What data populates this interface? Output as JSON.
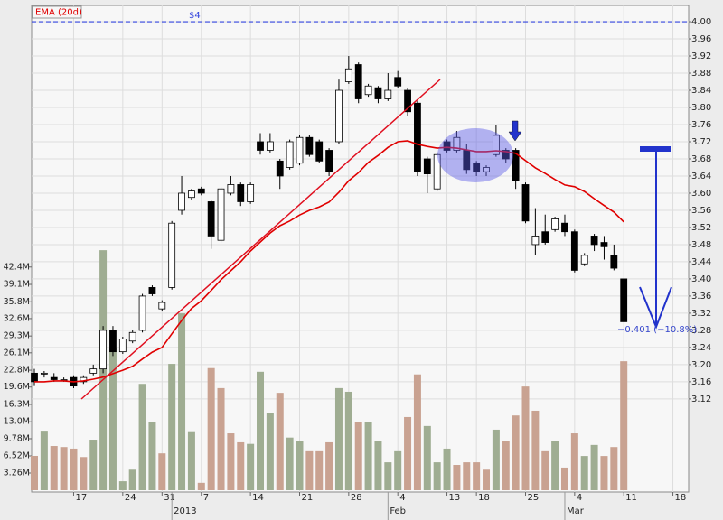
{
  "chart_data": {
    "type": "candlestick",
    "legend": "EMA (20d)",
    "annotation": "−0.401 (−10.8%)",
    "hline": {
      "value": 4,
      "label": "$4",
      "color": "#3344dd"
    },
    "categories": [
      null,
      null,
      null,
      null,
      "17",
      null,
      null,
      null,
      null,
      "24",
      null,
      null,
      null,
      "31",
      null,
      null,
      null,
      "7",
      null,
      null,
      null,
      null,
      "14",
      null,
      null,
      null,
      null,
      "21",
      null,
      null,
      null,
      null,
      "28",
      null,
      null,
      null,
      null,
      "4",
      null,
      null,
      null,
      null,
      "13",
      null,
      null,
      "18",
      null,
      null,
      null,
      null,
      "25",
      null,
      null,
      null,
      null,
      "4",
      null,
      null,
      null,
      null,
      "11",
      null,
      null,
      null,
      null,
      "18"
    ],
    "periods": [
      null,
      null,
      null,
      null,
      null,
      null,
      null,
      null,
      null,
      null,
      null,
      null,
      null,
      null,
      "2013",
      null,
      null,
      null,
      null,
      null,
      null,
      null,
      null,
      null,
      null,
      null,
      null,
      null,
      null,
      null,
      null,
      null,
      null,
      null,
      null,
      null,
      "Feb",
      null,
      null,
      null,
      null,
      null,
      null,
      null,
      null,
      null,
      null,
      null,
      null,
      null,
      null,
      null,
      null,
      null,
      "Mar",
      null,
      null,
      null,
      null,
      null,
      null,
      null,
      null,
      null,
      null,
      null
    ],
    "open": [
      3.18,
      3.18,
      3.17,
      3.165,
      3.17,
      3.16,
      3.18,
      3.19,
      3.28,
      3.23,
      3.255,
      3.28,
      3.38,
      3.33,
      3.38,
      3.56,
      3.59,
      3.61,
      3.58,
      3.49,
      3.6,
      3.62,
      3.58,
      3.72,
      3.7,
      3.675,
      3.66,
      3.67,
      3.73,
      3.72,
      3.7,
      3.72,
      3.86,
      3.9,
      3.83,
      3.846,
      3.82,
      3.87,
      3.84,
      3.81,
      3.68,
      3.61,
      3.72,
      3.7,
      3.7,
      3.67,
      3.65,
      3.69,
      3.7,
      3.7,
      3.62,
      3.48,
      3.51,
      3.515,
      3.53,
      3.51,
      3.435,
      3.5,
      3.485,
      3.455,
      3.4,
      null,
      null,
      null,
      null,
      null
    ],
    "close": [
      3.16,
      3.18,
      3.165,
      3.165,
      3.15,
      3.17,
      3.19,
      3.28,
      3.23,
      3.26,
      3.275,
      3.36,
      3.365,
      3.345,
      3.53,
      3.6,
      3.605,
      3.6,
      3.5,
      3.61,
      3.62,
      3.58,
      3.62,
      3.7,
      3.72,
      3.64,
      3.72,
      3.73,
      3.69,
      3.675,
      3.65,
      3.84,
      3.89,
      3.82,
      3.85,
      3.82,
      3.84,
      3.85,
      3.79,
      3.65,
      3.645,
      3.69,
      3.7,
      3.73,
      3.655,
      3.65,
      3.66,
      3.735,
      3.68,
      3.63,
      3.535,
      3.5,
      3.485,
      3.54,
      3.51,
      3.42,
      3.455,
      3.48,
      3.475,
      3.425,
      3.3,
      null,
      null,
      null,
      null,
      null
    ],
    "high": [
      3.19,
      3.185,
      3.18,
      3.17,
      3.175,
      3.175,
      3.2,
      3.29,
      3.29,
      3.265,
      3.28,
      3.365,
      3.385,
      3.35,
      3.535,
      3.64,
      3.61,
      3.615,
      3.585,
      3.615,
      3.64,
      3.625,
      3.625,
      3.74,
      3.74,
      3.68,
      3.725,
      3.735,
      3.735,
      3.725,
      3.705,
      3.865,
      3.92,
      3.905,
      3.855,
      3.85,
      3.88,
      3.885,
      3.845,
      3.815,
      3.685,
      3.695,
      3.725,
      3.745,
      3.715,
      3.675,
      3.665,
      3.76,
      3.705,
      3.705,
      3.625,
      3.565,
      3.55,
      3.545,
      3.55,
      3.515,
      3.46,
      3.505,
      3.5,
      3.48,
      3.4,
      null,
      null,
      null,
      null,
      null
    ],
    "low": [
      3.15,
      3.17,
      3.16,
      3.16,
      3.145,
      3.155,
      3.175,
      3.18,
      3.22,
      3.225,
      3.25,
      3.275,
      3.36,
      3.325,
      3.375,
      3.55,
      3.585,
      3.595,
      3.47,
      3.485,
      3.595,
      3.57,
      3.575,
      3.69,
      3.695,
      3.61,
      3.655,
      3.665,
      3.685,
      3.67,
      3.64,
      3.715,
      3.855,
      3.81,
      3.825,
      3.81,
      3.815,
      3.845,
      3.78,
      3.64,
      3.6,
      3.605,
      3.695,
      3.695,
      3.645,
      3.64,
      3.64,
      3.685,
      3.67,
      3.61,
      3.53,
      3.455,
      3.48,
      3.51,
      3.5,
      3.415,
      3.43,
      3.465,
      3.445,
      3.42,
      3.3,
      null,
      null,
      null,
      null,
      null
    ],
    "ema": {
      "name": "EMA (20d)",
      "color": "#e00000",
      "values": [
        3.16,
        3.16,
        3.162,
        3.162,
        3.16,
        3.162,
        3.166,
        3.171,
        3.179,
        3.187,
        3.196,
        3.213,
        3.229,
        3.24,
        3.272,
        3.303,
        3.331,
        3.349,
        3.373,
        3.398,
        3.419,
        3.44,
        3.465,
        3.486,
        3.507,
        3.524,
        3.535,
        3.549,
        3.56,
        3.568,
        3.579,
        3.602,
        3.629,
        3.648,
        3.672,
        3.688,
        3.707,
        3.72,
        3.722,
        3.714,
        3.709,
        3.705,
        3.707,
        3.705,
        3.701,
        3.697,
        3.697,
        3.699,
        3.697,
        3.693,
        3.676,
        3.659,
        3.646,
        3.632,
        3.619,
        3.615,
        3.604,
        3.587,
        3.571,
        3.556,
        3.533,
        null,
        null,
        null,
        null,
        null
      ]
    },
    "volume": {
      "axis": "y2",
      "values": [
        6520000,
        11300000,
        8400000,
        8200000,
        7900000,
        6300000,
        9600000,
        45600000,
        27100000,
        1700000,
        3900000,
        20200000,
        12900000,
        7000000,
        24000000,
        33600000,
        11200000,
        1400000,
        23200000,
        19400000,
        10800000,
        9100000,
        8800000,
        22500000,
        14600000,
        18500000,
        10000000,
        9400000,
        7400000,
        7400000,
        9100000,
        19400000,
        18700000,
        12900000,
        12900000,
        9400000,
        5300000,
        7400000,
        13900000,
        22000000,
        12200000,
        5300000,
        7900000,
        4800000,
        5300000,
        5300000,
        3900000,
        11500000,
        9400000,
        14200000,
        19700000,
        15100000,
        7400000,
        9400000,
        4300000,
        10800000,
        6500000,
        8600000,
        6500000,
        8200000,
        24500000,
        null,
        null,
        null,
        null,
        null
      ],
      "colors": [
        "#c9a291",
        "#9fad92",
        "#c9a291",
        "#c9a291",
        "#c9a291",
        "#c9a291",
        "#9fad92",
        "#9fad92",
        "#9fad92",
        "#9fad92",
        "#9fad92",
        "#9fad92",
        "#9fad92",
        "#c9a291",
        "#9fad92",
        "#9fad92",
        "#9fad92",
        "#c9a291",
        "#c9a291",
        "#c9a291",
        "#c9a291",
        "#c9a291",
        "#9fad92",
        "#9fad92",
        "#9fad92",
        "#c9a291",
        "#9fad92",
        "#9fad92",
        "#c9a291",
        "#c9a291",
        "#c9a291",
        "#9fad92",
        "#9fad92",
        "#c9a291",
        "#9fad92",
        "#9fad92",
        "#9fad92",
        "#9fad92",
        "#c9a291",
        "#c9a291",
        "#9fad92",
        "#9fad92",
        "#9fad92",
        "#c9a291",
        "#c9a291",
        "#c9a291",
        "#c9a291",
        "#9fad92",
        "#c9a291",
        "#c9a291",
        "#c9a291",
        "#c9a291",
        "#c9a291",
        "#9fad92",
        "#c9a291",
        "#c9a291",
        "#9fad92",
        "#9fad92",
        "#c9a291",
        "#c9a291",
        "#c9a291",
        null,
        null,
        null,
        null,
        null
      ]
    },
    "ylim": [
      2.907,
      4.038
    ],
    "yticks": [
      3.12,
      3.16,
      {
        "value": 3.2,
        "label": "3.20"
      },
      3.24,
      3.28,
      3.32,
      3.36,
      {
        "value": 3.4,
        "label": "3.40"
      },
      3.44,
      3.48,
      3.52,
      3.56,
      {
        "value": 3.6,
        "label": "3.60"
      },
      3.64,
      3.68,
      3.72,
      3.76,
      {
        "value": 3.8,
        "label": "3.80"
      },
      3.84,
      3.88,
      3.92,
      3.96,
      {
        "value": 4,
        "label": "4.00"
      }
    ],
    "y2lim": [
      0,
      92100000
    ],
    "y2ticks": [
      {
        "value": 3260000,
        "label": "3.26M"
      },
      {
        "value": 6520000,
        "label": "6.52M"
      },
      {
        "value": 9780000,
        "label": "9.78M"
      },
      {
        "value": 13000000,
        "label": "13.0M"
      },
      {
        "value": 16300000,
        "label": "16.3M"
      },
      {
        "value": 19600000,
        "label": "19.6M"
      },
      {
        "value": 22800000,
        "label": "22.8M"
      },
      {
        "value": 26100000,
        "label": "26.1M"
      },
      {
        "value": 29300000,
        "label": "29.3M"
      },
      {
        "value": 32600000,
        "label": "32.6M"
      },
      {
        "value": 35800000,
        "label": "35.8M"
      },
      {
        "value": 39100000,
        "label": "39.1M"
      },
      {
        "value": 42400000,
        "label": "42.4M"
      }
    ],
    "grid": true,
    "up_color": "#ffffff",
    "down_color": "#000000"
  }
}
